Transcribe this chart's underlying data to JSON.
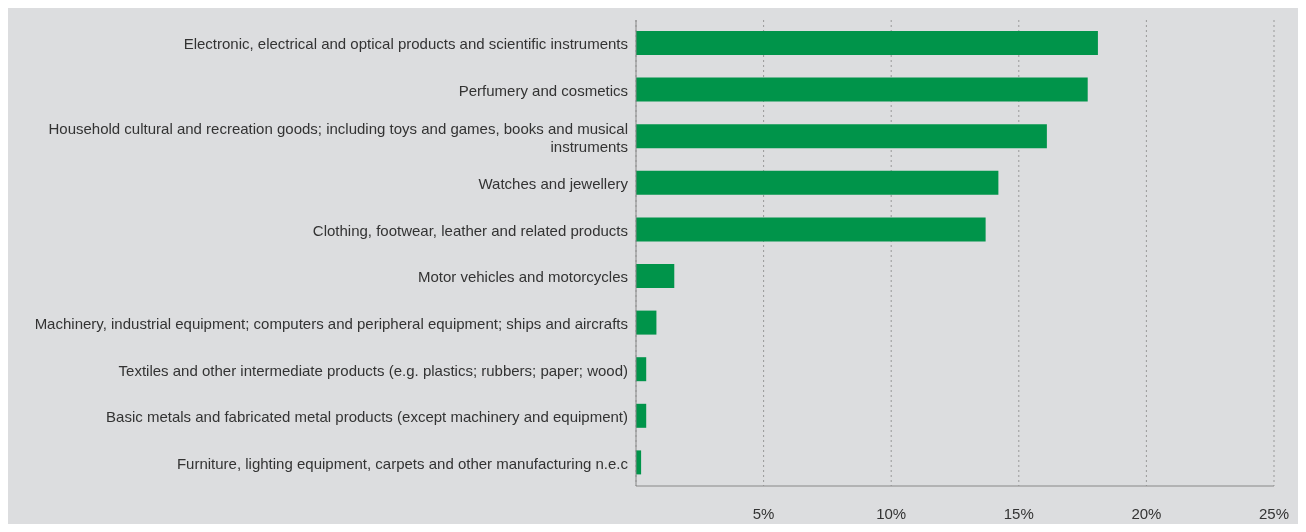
{
  "chart_data": {
    "type": "bar",
    "orientation": "horizontal",
    "categories": [
      "Electronic, electrical and optical products and scientific instruments",
      "Perfumery and cosmetics",
      "Household cultural and recreation goods;  including toys and games, books and musical instruments",
      "Watches and jewellery",
      "Clothing, footwear, leather and related products",
      "Motor vehicles and motorcycles",
      "Machinery, industrial equipment; computers and peripheral equipment; ships and aircrafts",
      "Textiles and other intermediate products (e.g. plastics; rubbers; paper; wood)",
      "Basic metals and fabricated metal products (except machinery and equipment)",
      "Furniture, lighting equipment, carpets and other manufacturing n.e.c"
    ],
    "values": [
      18.1,
      17.7,
      16.1,
      14.2,
      13.7,
      1.5,
      0.8,
      0.4,
      0.4,
      0.2
    ],
    "color": "#00944a",
    "xlim": [
      0,
      25
    ],
    "xticks": [
      {
        "value": 5,
        "label": "5%"
      },
      {
        "value": 10,
        "label": "10%"
      },
      {
        "value": 15,
        "label": "15%"
      },
      {
        "value": 20,
        "label": "20%"
      },
      {
        "value": 25,
        "label": "25%"
      }
    ],
    "grid": "x"
  }
}
